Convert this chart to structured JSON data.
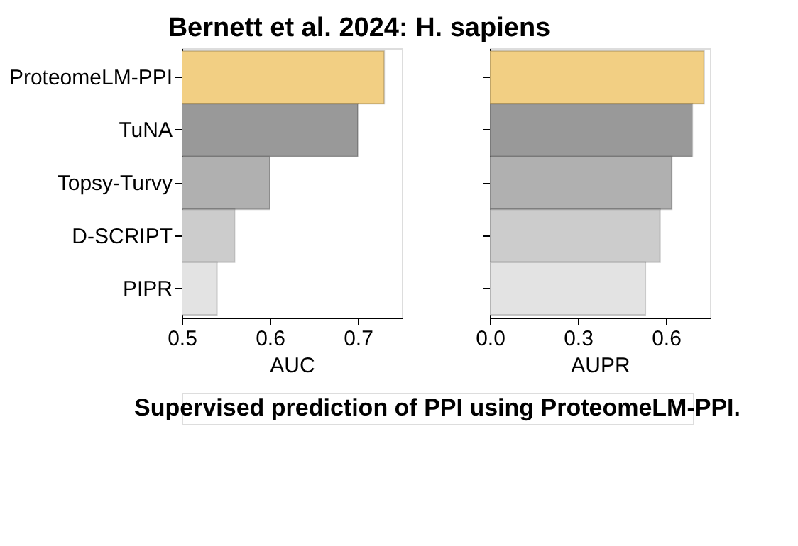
{
  "chart_data": [
    {
      "type": "bar",
      "orientation": "horizontal",
      "title": "Bernett et al. 2024: H. sapiens",
      "xlabel": "AUC",
      "categories": [
        "ProteomeLM-PPI",
        "TuNA",
        "Topsy-Turvy",
        "D-SCRIPT",
        "PIPR"
      ],
      "values": [
        0.73,
        0.7,
        0.6,
        0.56,
        0.54
      ],
      "colors": [
        "#f2cf83",
        "#999999",
        "#b0b0b0",
        "#cccccc",
        "#e3e3e3"
      ],
      "xlim": [
        0.5,
        0.75
      ],
      "xticks": [
        0.5,
        0.6,
        0.7
      ],
      "grid": false,
      "annotations": [
        "Supervised prediction of PPI using ProteomeLM-PPI."
      ]
    },
    {
      "type": "bar",
      "orientation": "horizontal",
      "xlabel": "AUPR",
      "categories": [
        null,
        null,
        null,
        null,
        null
      ],
      "values": [
        0.73,
        0.69,
        0.62,
        0.58,
        0.53
      ],
      "colors": [
        "#f2cf83",
        "#999999",
        "#b0b0b0",
        "#cccccc",
        "#e3e3e3"
      ],
      "xlim": [
        0,
        0.75
      ],
      "xticks": [
        {
          "value": 0,
          "label": "0.0"
        },
        0.3,
        0.6
      ],
      "grid": false,
      "tick_labels": "x"
    }
  ]
}
